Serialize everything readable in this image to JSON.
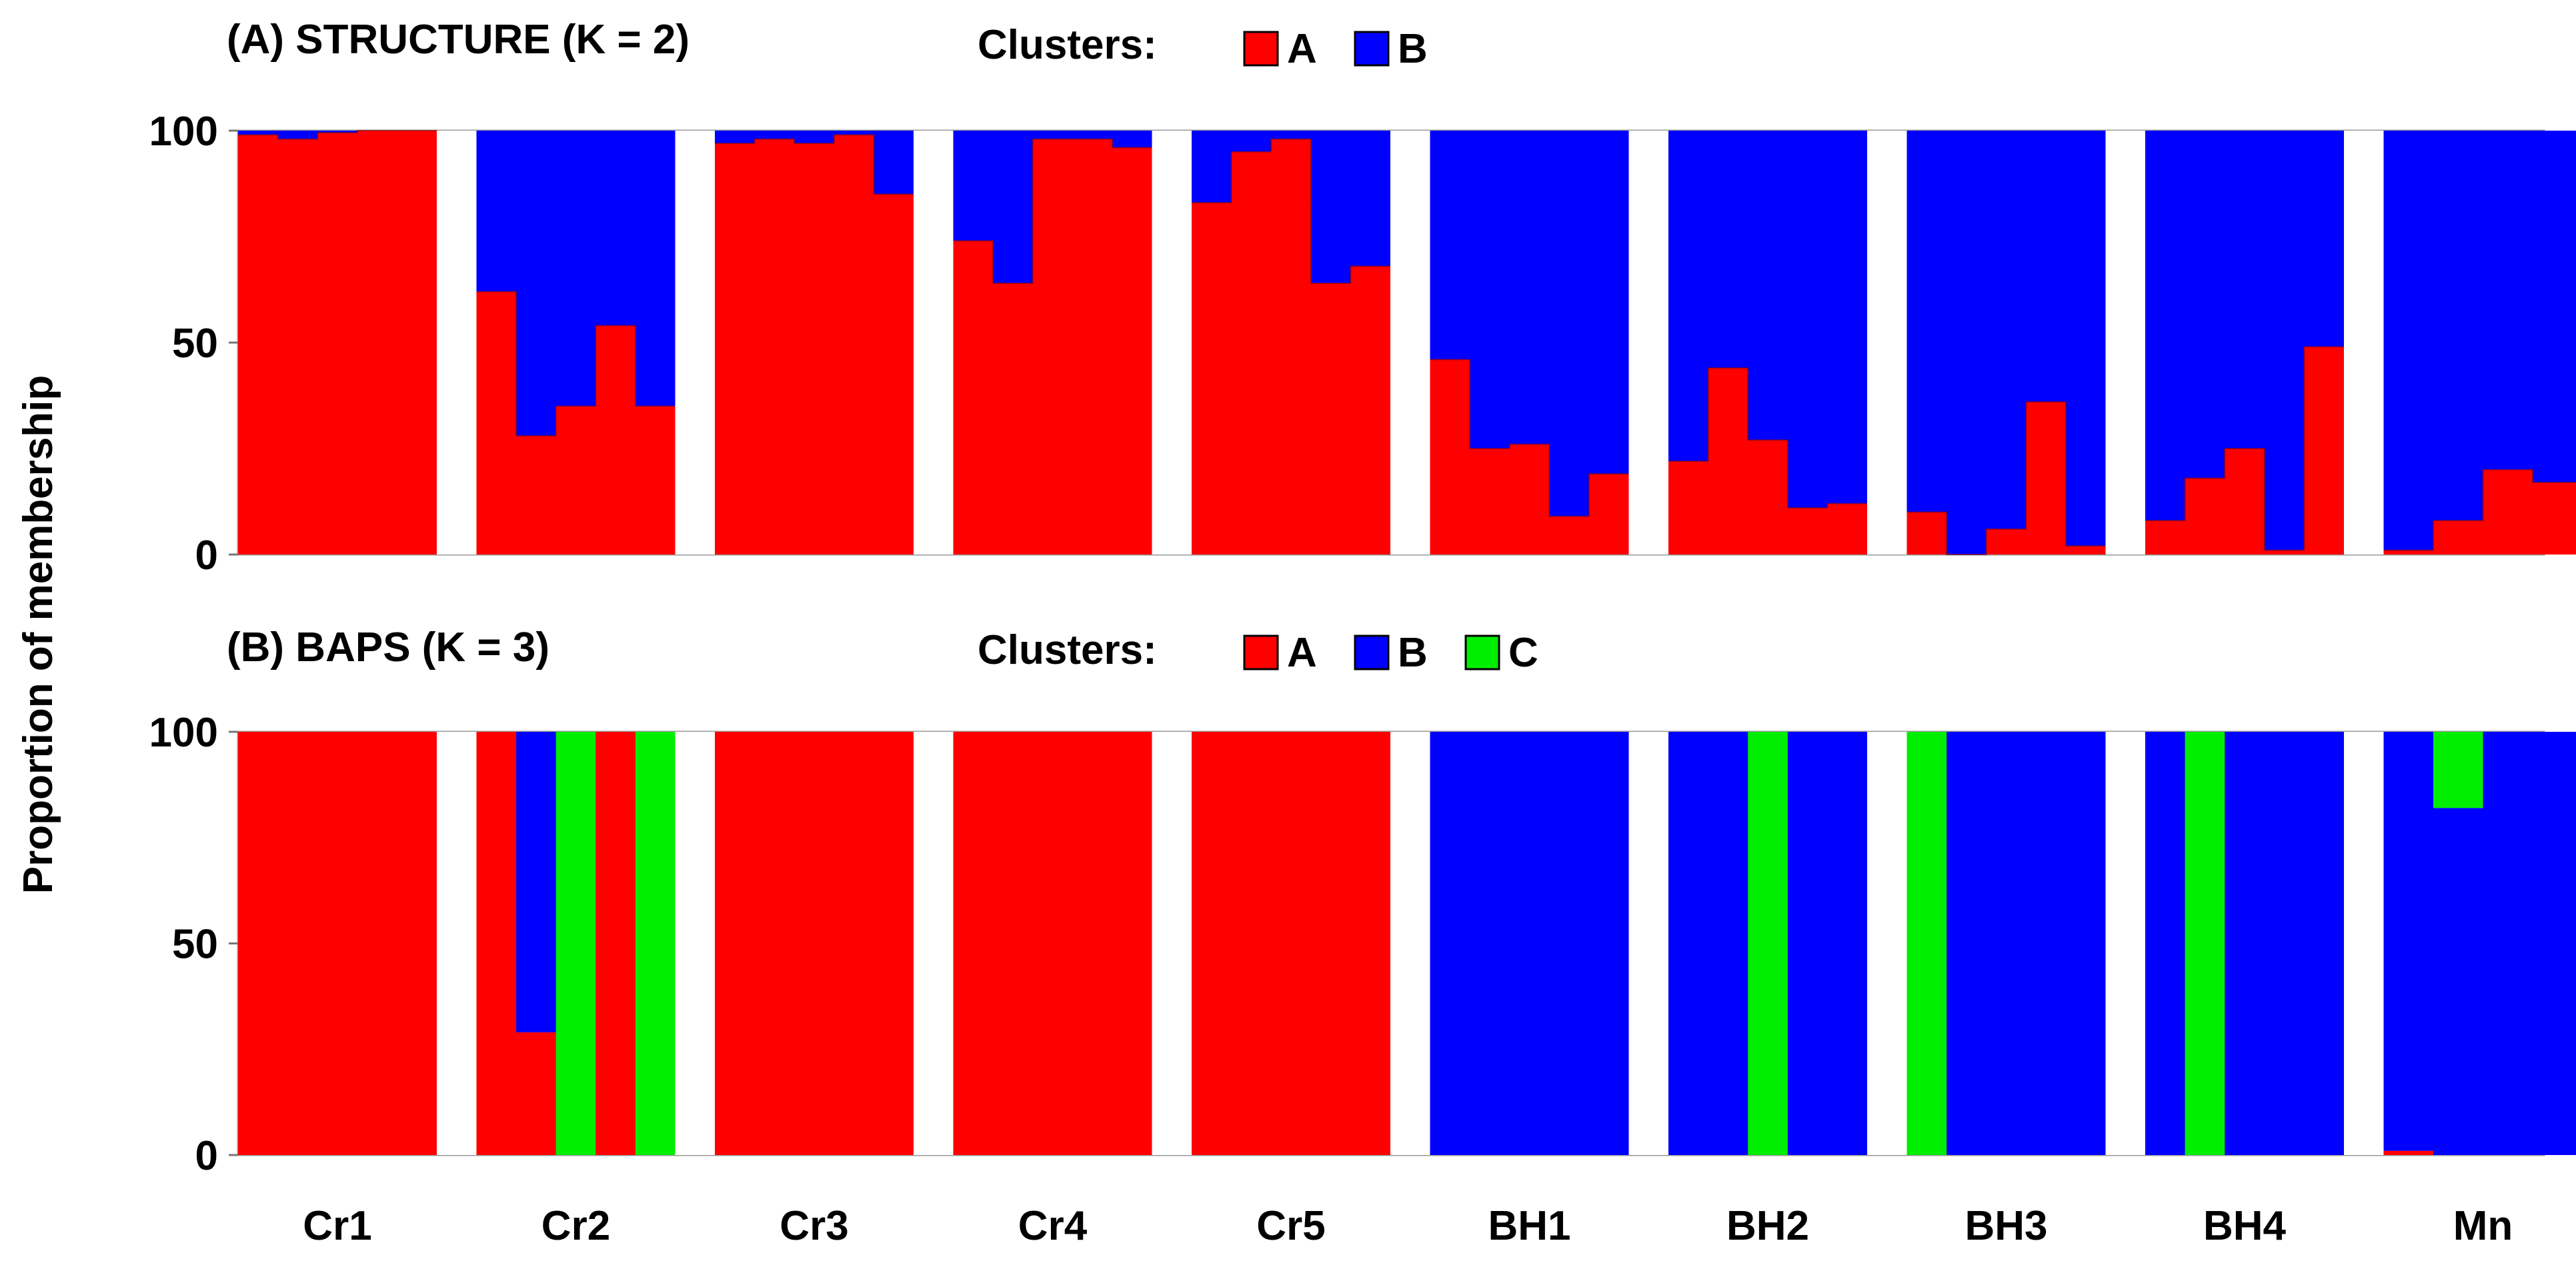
{
  "chart_data": [
    {
      "type": "bar",
      "stacked": true,
      "panel_title": "(A) STRUCTURE (K = 2)",
      "legend_label": "Clusters:",
      "legend": [
        {
          "name": "A",
          "color": "#ff0000"
        },
        {
          "name": "B",
          "color": "#0000ff"
        }
      ],
      "ylim": [
        0,
        100
      ],
      "yticks": [
        0,
        50,
        100
      ],
      "ylabel": "Proportion of membership",
      "grid": true,
      "populations": [
        {
          "name": "Cr1",
          "individuals": [
            [
              99,
              1
            ],
            [
              98,
              2
            ],
            [
              99.5,
              0.5
            ],
            [
              100,
              0
            ],
            [
              100,
              0
            ]
          ]
        },
        {
          "name": "Cr2",
          "individuals": [
            [
              62,
              38
            ],
            [
              28,
              72
            ],
            [
              35,
              65
            ],
            [
              54,
              46
            ],
            [
              35,
              65
            ]
          ]
        },
        {
          "name": "Cr3",
          "individuals": [
            [
              97,
              3
            ],
            [
              98,
              2
            ],
            [
              97,
              3
            ],
            [
              99,
              1
            ],
            [
              85,
              15
            ]
          ]
        },
        {
          "name": "Cr4",
          "individuals": [
            [
              74,
              26
            ],
            [
              64,
              36
            ],
            [
              98,
              2
            ],
            [
              98,
              2
            ],
            [
              96,
              4
            ]
          ]
        },
        {
          "name": "Cr5",
          "individuals": [
            [
              83,
              17
            ],
            [
              95,
              5
            ],
            [
              98,
              2
            ],
            [
              64,
              36
            ],
            [
              68,
              32
            ]
          ]
        },
        {
          "name": "BH1",
          "individuals": [
            [
              46,
              54
            ],
            [
              25,
              75
            ],
            [
              26,
              74
            ],
            [
              9,
              91
            ],
            [
              19,
              81
            ]
          ]
        },
        {
          "name": "BH2",
          "individuals": [
            [
              22,
              78
            ],
            [
              44,
              56
            ],
            [
              27,
              73
            ],
            [
              11,
              89
            ],
            [
              12,
              88
            ]
          ]
        },
        {
          "name": "BH3",
          "individuals": [
            [
              10,
              90
            ],
            [
              0,
              100
            ],
            [
              6,
              94
            ],
            [
              36,
              64
            ],
            [
              2,
              98
            ]
          ]
        },
        {
          "name": "BH4",
          "individuals": [
            [
              8,
              92
            ],
            [
              18,
              82
            ],
            [
              25,
              75
            ],
            [
              1,
              99
            ],
            [
              49,
              51
            ]
          ]
        },
        {
          "name": "Mn",
          "individuals": [
            [
              1,
              99
            ],
            [
              8,
              92
            ],
            [
              20,
              80
            ],
            [
              17,
              83
            ]
          ]
        }
      ]
    },
    {
      "type": "bar",
      "stacked": true,
      "panel_title": "(B) BAPS (K = 3)",
      "legend_label": "Clusters:",
      "legend": [
        {
          "name": "A",
          "color": "#ff0000"
        },
        {
          "name": "B",
          "color": "#0000ff"
        },
        {
          "name": "C",
          "color": "#00ee00"
        }
      ],
      "ylim": [
        0,
        100
      ],
      "yticks": [
        0,
        50,
        100
      ],
      "ylabel": "Proportion of membership",
      "grid": true,
      "populations": [
        {
          "name": "Cr1",
          "individuals": [
            [
              100,
              0,
              0
            ],
            [
              100,
              0,
              0
            ],
            [
              100,
              0,
              0
            ],
            [
              100,
              0,
              0
            ],
            [
              100,
              0,
              0
            ]
          ]
        },
        {
          "name": "Cr2",
          "individuals": [
            [
              100,
              0,
              0
            ],
            [
              29,
              71,
              0
            ],
            [
              0,
              0,
              100
            ],
            [
              100,
              0,
              0
            ],
            [
              0,
              0,
              100
            ]
          ]
        },
        {
          "name": "Cr3",
          "individuals": [
            [
              100,
              0,
              0
            ],
            [
              100,
              0,
              0
            ],
            [
              100,
              0,
              0
            ],
            [
              100,
              0,
              0
            ],
            [
              100,
              0,
              0
            ]
          ]
        },
        {
          "name": "Cr4",
          "individuals": [
            [
              100,
              0,
              0
            ],
            [
              100,
              0,
              0
            ],
            [
              100,
              0,
              0
            ],
            [
              100,
              0,
              0
            ],
            [
              100,
              0,
              0
            ]
          ]
        },
        {
          "name": "Cr5",
          "individuals": [
            [
              100,
              0,
              0
            ],
            [
              100,
              0,
              0
            ],
            [
              100,
              0,
              0
            ],
            [
              100,
              0,
              0
            ],
            [
              100,
              0,
              0
            ]
          ]
        },
        {
          "name": "BH1",
          "individuals": [
            [
              0,
              100,
              0
            ],
            [
              0,
              100,
              0
            ],
            [
              0,
              100,
              0
            ],
            [
              0,
              100,
              0
            ],
            [
              0,
              100,
              0
            ]
          ]
        },
        {
          "name": "BH2",
          "individuals": [
            [
              0,
              100,
              0
            ],
            [
              0,
              100,
              0
            ],
            [
              0,
              0,
              100
            ],
            [
              0,
              100,
              0
            ],
            [
              0,
              100,
              0
            ]
          ]
        },
        {
          "name": "BH3",
          "individuals": [
            [
              0,
              0,
              100
            ],
            [
              0,
              100,
              0
            ],
            [
              0,
              100,
              0
            ],
            [
              0,
              100,
              0
            ],
            [
              0,
              100,
              0
            ]
          ]
        },
        {
          "name": "BH4",
          "individuals": [
            [
              0,
              100,
              0
            ],
            [
              0,
              0,
              100
            ],
            [
              0,
              100,
              0
            ],
            [
              0,
              100,
              0
            ],
            [
              0,
              100,
              0
            ]
          ]
        },
        {
          "name": "Mn",
          "individuals": [
            [
              1,
              99,
              0
            ],
            [
              0,
              82,
              18
            ],
            [
              0,
              100,
              0
            ],
            [
              0,
              100,
              0
            ]
          ]
        }
      ]
    }
  ]
}
